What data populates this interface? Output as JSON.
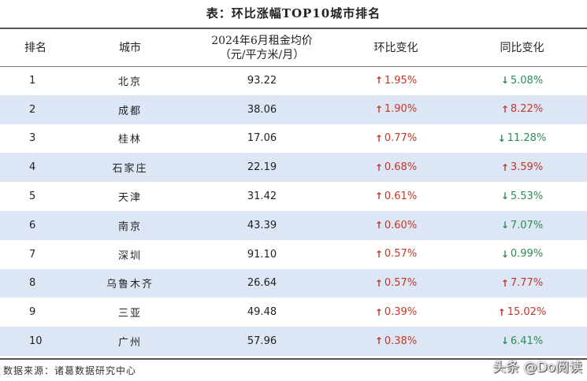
{
  "title": "表：环比涨幅TOP10城市排名",
  "headers": {
    "rank": "排名",
    "city": "城市",
    "price_line1": "2024年6月租金均价",
    "price_line2": "（元/平方米/月）",
    "mom": "环比变化",
    "yoy": "同比变化"
  },
  "rows": [
    {
      "rank": "1",
      "city": "北京",
      "price": "93.22",
      "mom": "1.95%",
      "mom_dir": "up",
      "yoy": "5.08%",
      "yoy_dir": "down"
    },
    {
      "rank": "2",
      "city": "成都",
      "price": "38.06",
      "mom": "1.90%",
      "mom_dir": "up",
      "yoy": "8.22%",
      "yoy_dir": "up"
    },
    {
      "rank": "3",
      "city": "桂林",
      "price": "17.06",
      "mom": "0.77%",
      "mom_dir": "up",
      "yoy": "11.28%",
      "yoy_dir": "down"
    },
    {
      "rank": "4",
      "city": "石家庄",
      "price": "22.19",
      "mom": "0.68%",
      "mom_dir": "up",
      "yoy": "3.59%",
      "yoy_dir": "up"
    },
    {
      "rank": "5",
      "city": "天津",
      "price": "31.42",
      "mom": "0.61%",
      "mom_dir": "up",
      "yoy": "5.53%",
      "yoy_dir": "down"
    },
    {
      "rank": "6",
      "city": "南京",
      "price": "43.39",
      "mom": "0.60%",
      "mom_dir": "up",
      "yoy": "7.07%",
      "yoy_dir": "down"
    },
    {
      "rank": "7",
      "city": "深圳",
      "price": "91.10",
      "mom": "0.57%",
      "mom_dir": "up",
      "yoy": "0.99%",
      "yoy_dir": "down"
    },
    {
      "rank": "8",
      "city": "乌鲁木齐",
      "price": "26.64",
      "mom": "0.57%",
      "mom_dir": "up",
      "yoy": "7.77%",
      "yoy_dir": "up"
    },
    {
      "rank": "9",
      "city": "三亚",
      "price": "49.48",
      "mom": "0.39%",
      "mom_dir": "up",
      "yoy": "15.02%",
      "yoy_dir": "up"
    },
    {
      "rank": "10",
      "city": "广州",
      "price": "57.96",
      "mom": "0.38%",
      "mom_dir": "up",
      "yoy": "6.41%",
      "yoy_dir": "down"
    }
  ],
  "icons": {
    "up": "arrow-up-icon",
    "down": "arrow-down-icon"
  },
  "colors": {
    "up": "#c0392b",
    "down": "#2e8b57",
    "alt_row": "#dde6f5"
  },
  "footer": "数据来源：诸葛数据研究中心",
  "watermark": "头条 @Do阅读"
}
